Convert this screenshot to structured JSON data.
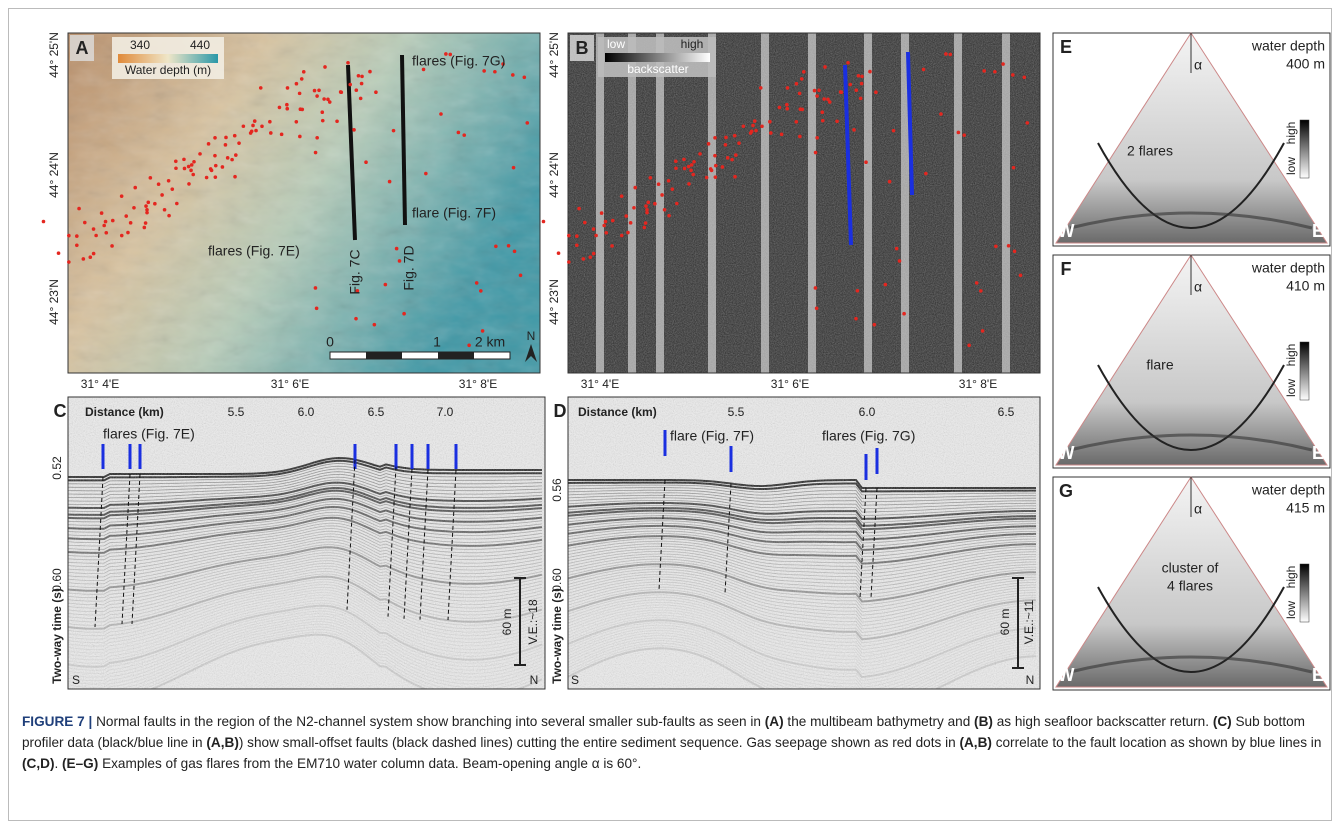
{
  "panels": {
    "A": {
      "letter": "A",
      "legend": {
        "min": "340",
        "max": "440",
        "title": "Water depth (m)"
      },
      "labels": [
        "flares (Fig. 7G)",
        "flares (Fig. 7E)",
        "flare (Fig. 7F)",
        "Fig. 7C",
        "Fig. 7D"
      ],
      "scale_bar": [
        "0",
        "1",
        "2 km"
      ],
      "north": "N",
      "y_ticks": [
        "44° 25'N",
        "44° 24'N",
        "44° 23'N"
      ],
      "x_ticks": [
        "31° 4'E",
        "31° 6'E",
        "31° 8'E"
      ]
    },
    "B": {
      "letter": "B",
      "legend": {
        "low": "low",
        "high": "high",
        "title": "backscatter"
      },
      "y_ticks": [
        "44° 25'N",
        "44° 24'N",
        "44° 23'N"
      ],
      "x_ticks": [
        "31° 4'E",
        "31° 6'E",
        "31° 8'E"
      ]
    },
    "C": {
      "letter": "C",
      "x_title": "Distance (km)",
      "x_ticks": [
        "5.5",
        "6.0",
        "6.5",
        "7.0"
      ],
      "y_ticks": [
        "0.52",
        "0.60"
      ],
      "y_title": "Two-way time (s)",
      "labels": [
        "flares (Fig. 7E)"
      ],
      "scale": "60 m",
      "ve": "V.E.:~18",
      "left": "S",
      "right": "N"
    },
    "D": {
      "letter": "D",
      "x_title": "Distance (km)",
      "x_ticks": [
        "5.5",
        "6.0",
        "6.5"
      ],
      "y_ticks": [
        "0.56",
        "0.60"
      ],
      "y_title": "Two-way time (s)",
      "labels": [
        "flare (Fig. 7F)",
        "flares (Fig. 7G)"
      ],
      "scale": "60 m",
      "ve": "V.E.:~11",
      "left": "S",
      "right": "N"
    },
    "E": {
      "letter": "E",
      "depth": [
        "water depth",
        "400 m"
      ],
      "angle": "α",
      "high": "high",
      "low": "low",
      "labels": [
        "2 flares"
      ],
      "left": "W",
      "right": "E"
    },
    "F": {
      "letter": "F",
      "depth": [
        "water depth",
        "410 m"
      ],
      "angle": "α",
      "high": "high",
      "low": "low",
      "labels": [
        "flare"
      ],
      "left": "W",
      "right": "E"
    },
    "G": {
      "letter": "G",
      "depth": [
        "water depth",
        "415 m"
      ],
      "angle": "α",
      "high": "high",
      "low": "low",
      "labels": [
        "cluster of",
        "4 flares"
      ],
      "left": "W",
      "right": "E"
    }
  },
  "caption": [
    {
      "text": "FIGURE 7 | ",
      "bold": true
    },
    {
      "text": "Normal faults in the region of the N2-channel system show branching into several smaller sub-faults as seen in "
    },
    {
      "text": "(A)",
      "bold": true
    },
    {
      "text": " the multibeam bathymetry and "
    },
    {
      "text": "(B)",
      "bold": true
    },
    {
      "text": " as high seafloor backscatter return. "
    },
    {
      "text": "(C)",
      "bold": true
    },
    {
      "text": " Sub bottom profiler data (black/blue line in "
    },
    {
      "text": "(A,B)",
      "bold": true
    },
    {
      "text": ") show small-offset faults (black dashed lines) cutting the entire sediment sequence. Gas seepage shown as red dots in "
    },
    {
      "text": "(A,B)",
      "bold": true
    },
    {
      "text": " correlate to the fault location as shown by blue lines in "
    },
    {
      "text": "(C,D)",
      "bold": true
    },
    {
      "text": ". "
    },
    {
      "text": "(E–G)",
      "bold": true
    },
    {
      "text": " Examples of gas flares from the EM710 water column data. Beam-opening angle α is 60°."
    }
  ]
}
